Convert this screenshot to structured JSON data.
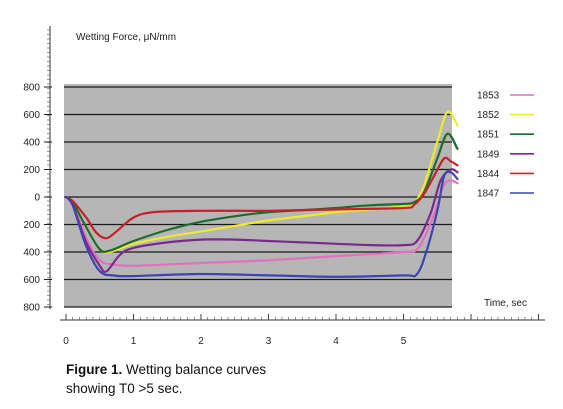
{
  "chart_data": {
    "type": "line",
    "ylabel": "Wetting Force, μN/mm",
    "xlabel": "Time, sec",
    "x_ticks": [
      "0",
      "1",
      "2",
      "3",
      "4",
      "5"
    ],
    "y_ticks": [
      "800",
      "600",
      "400",
      "200",
      "0",
      "200",
      "400",
      "600",
      "800"
    ],
    "y_tick_values": [
      800,
      600,
      400,
      200,
      0,
      -200,
      -400,
      -600,
      -800
    ],
    "xlim": [
      0,
      5.8
    ],
    "ylim": [
      -800,
      800
    ],
    "grid": true,
    "legend_position": "right",
    "series": [
      {
        "name": "1853",
        "color": "#e26fc0",
        "points": [
          [
            0,
            0
          ],
          [
            0.1,
            -50
          ],
          [
            0.3,
            -300
          ],
          [
            0.5,
            -460
          ],
          [
            0.7,
            -490
          ],
          [
            1,
            -500
          ],
          [
            2,
            -480
          ],
          [
            3,
            -460
          ],
          [
            4,
            -430
          ],
          [
            5,
            -400
          ],
          [
            5.2,
            -380
          ],
          [
            5.35,
            -250
          ],
          [
            5.5,
            -60
          ],
          [
            5.6,
            90
          ],
          [
            5.7,
            120
          ],
          [
            5.8,
            100
          ]
        ]
      },
      {
        "name": "1852",
        "color": "#ecec2a",
        "points": [
          [
            0,
            0
          ],
          [
            0.1,
            -40
          ],
          [
            0.3,
            -220
          ],
          [
            0.5,
            -380
          ],
          [
            0.65,
            -400
          ],
          [
            1,
            -340
          ],
          [
            1.5,
            -290
          ],
          [
            2,
            -250
          ],
          [
            2.5,
            -210
          ],
          [
            3,
            -170
          ],
          [
            3.5,
            -140
          ],
          [
            4,
            -110
          ],
          [
            4.5,
            -90
          ],
          [
            5,
            -70
          ],
          [
            5.15,
            -50
          ],
          [
            5.3,
            80
          ],
          [
            5.5,
            400
          ],
          [
            5.65,
            620
          ],
          [
            5.8,
            520
          ]
        ]
      },
      {
        "name": "1851",
        "color": "#1f6b2a",
        "points": [
          [
            0,
            0
          ],
          [
            0.1,
            -40
          ],
          [
            0.3,
            -220
          ],
          [
            0.5,
            -380
          ],
          [
            0.65,
            -390
          ],
          [
            1,
            -320
          ],
          [
            1.5,
            -240
          ],
          [
            2,
            -180
          ],
          [
            2.5,
            -140
          ],
          [
            3,
            -110
          ],
          [
            3.5,
            -95
          ],
          [
            4,
            -80
          ],
          [
            4.5,
            -60
          ],
          [
            5,
            -50
          ],
          [
            5.15,
            -40
          ],
          [
            5.3,
            30
          ],
          [
            5.5,
            280
          ],
          [
            5.65,
            460
          ],
          [
            5.8,
            350
          ]
        ]
      },
      {
        "name": "1849",
        "color": "#7a2a8c",
        "points": [
          [
            0,
            0
          ],
          [
            0.1,
            -60
          ],
          [
            0.3,
            -330
          ],
          [
            0.5,
            -500
          ],
          [
            0.6,
            -540
          ],
          [
            0.8,
            -420
          ],
          [
            1,
            -370
          ],
          [
            1.5,
            -330
          ],
          [
            2,
            -310
          ],
          [
            2.5,
            -310
          ],
          [
            3,
            -320
          ],
          [
            3.5,
            -330
          ],
          [
            4,
            -340
          ],
          [
            4.5,
            -350
          ],
          [
            5,
            -350
          ],
          [
            5.2,
            -320
          ],
          [
            5.4,
            -120
          ],
          [
            5.55,
            120
          ],
          [
            5.7,
            200
          ],
          [
            5.8,
            180
          ]
        ]
      },
      {
        "name": "1844",
        "color": "#c8202a",
        "points": [
          [
            0,
            0
          ],
          [
            0.1,
            -30
          ],
          [
            0.3,
            -150
          ],
          [
            0.45,
            -260
          ],
          [
            0.6,
            -300
          ],
          [
            0.75,
            -250
          ],
          [
            1,
            -150
          ],
          [
            1.3,
            -110
          ],
          [
            2,
            -100
          ],
          [
            3,
            -100
          ],
          [
            4,
            -90
          ],
          [
            5,
            -80
          ],
          [
            5.15,
            -60
          ],
          [
            5.3,
            20
          ],
          [
            5.45,
            150
          ],
          [
            5.6,
            280
          ],
          [
            5.7,
            260
          ],
          [
            5.8,
            230
          ]
        ]
      },
      {
        "name": "1847",
        "color": "#3c44b0",
        "points": [
          [
            0,
            0
          ],
          [
            0.1,
            -60
          ],
          [
            0.3,
            -360
          ],
          [
            0.5,
            -540
          ],
          [
            0.7,
            -570
          ],
          [
            1,
            -575
          ],
          [
            2,
            -560
          ],
          [
            3,
            -570
          ],
          [
            4,
            -580
          ],
          [
            5,
            -570
          ],
          [
            5.2,
            -560
          ],
          [
            5.35,
            -380
          ],
          [
            5.5,
            -100
          ],
          [
            5.6,
            150
          ],
          [
            5.7,
            180
          ],
          [
            5.8,
            130
          ]
        ]
      }
    ]
  },
  "caption": {
    "label": "Figure 1.",
    "line1": " Wetting balance curves",
    "line2": "showing T0 >5 sec."
  }
}
